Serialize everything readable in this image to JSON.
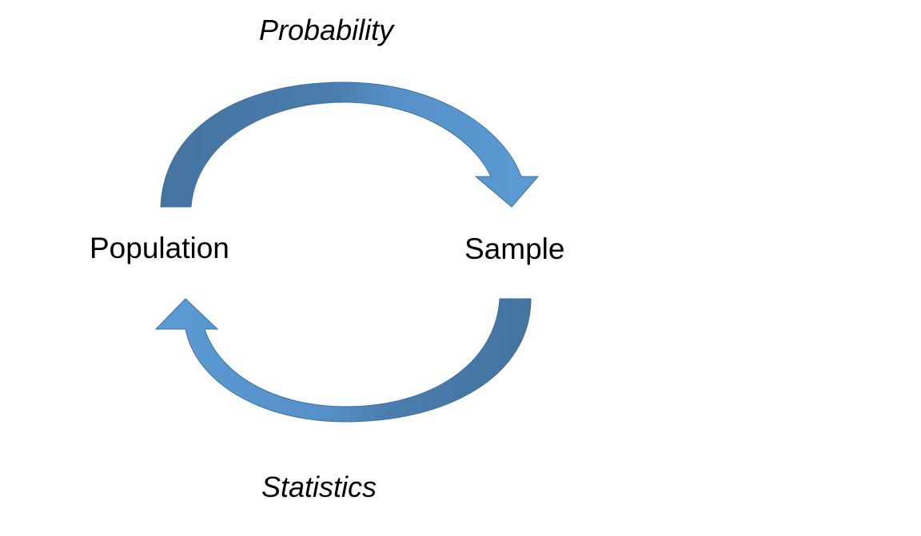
{
  "labels": {
    "probability": "Probability",
    "population": "Population",
    "sample": "Sample",
    "statistics": "Statistics"
  },
  "colors": {
    "arrow_light": "#5B9BD5",
    "arrow_dark": "#4A7DAE",
    "arrow_outline": "#41719C",
    "text": "#000000"
  }
}
